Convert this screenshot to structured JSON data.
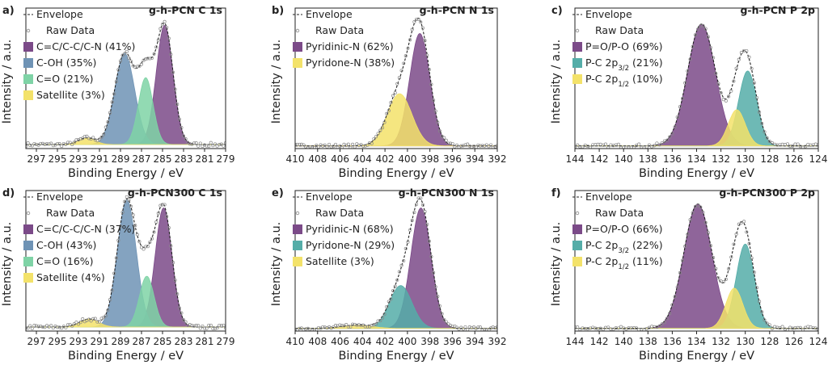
{
  "chart_data": [
    {
      "type": "line",
      "letter": "a)",
      "title": "g-h-PCN C 1s",
      "xlabel": "Binding Energy / eV",
      "ylabel": "Intensity / a.u.",
      "xlim": [
        298,
        279
      ],
      "xticks": [
        297,
        295,
        293,
        291,
        289,
        287,
        285,
        283,
        281,
        279
      ],
      "ylim": [
        0,
        1.05
      ],
      "baseline": 0.03,
      "legend": {
        "envelope": "Envelope",
        "raw": "Raw Data"
      },
      "components": [
        {
          "name": "C=C/C-C/C-N (41%)",
          "color": "#7b4a88",
          "center": 284.8,
          "height": 0.89,
          "sigma": 0.8
        },
        {
          "name": "C-OH (35%)",
          "color": "#6f93b5",
          "center": 288.6,
          "height": 0.68,
          "sigma": 0.95
        },
        {
          "name": "C=O (21%)",
          "color": "#7fd3a6",
          "center": 286.6,
          "height": 0.5,
          "sigma": 0.7
        },
        {
          "name": "Satellite (3%)",
          "color": "#f3e26a",
          "center": 292.2,
          "height": 0.05,
          "sigma": 0.8
        }
      ]
    },
    {
      "type": "line",
      "letter": "b)",
      "title": "g-h-PCN N 1s",
      "xlabel": "Binding Energy / eV",
      "ylabel": "Intensity / a.u.",
      "xlim": [
        410,
        392
      ],
      "xticks": [
        410,
        408,
        406,
        404,
        402,
        400,
        398,
        396,
        394,
        392
      ],
      "ylim": [
        0,
        1.05
      ],
      "baseline": 0.02,
      "legend": {
        "envelope": "Envelope",
        "raw": "Raw Data"
      },
      "components": [
        {
          "name": "Pyridinic-N (62%)",
          "color": "#7b4a88",
          "center": 398.9,
          "height": 0.84,
          "sigma": 0.9
        },
        {
          "name": "Pyridone-N (38%)",
          "color": "#f3e26a",
          "center": 400.7,
          "height": 0.39,
          "sigma": 1.1
        }
      ]
    },
    {
      "type": "line",
      "letter": "c)",
      "title": "g-h-PCN P 2p",
      "xlabel": "Binding Energy / eV",
      "ylabel": "Intensity / a.u.",
      "xlim": [
        144,
        124
      ],
      "xticks": [
        144,
        142,
        140,
        138,
        136,
        134,
        132,
        130,
        128,
        126,
        124
      ],
      "ylim": [
        0,
        1.05
      ],
      "baseline": 0.02,
      "legend": {
        "envelope": "Envelope",
        "raw": "Raw Data"
      },
      "components": [
        {
          "name": "P=O/P-O (69%)",
          "color": "#7b4a88",
          "center": 133.6,
          "height": 0.91,
          "sigma": 1.15
        },
        {
          "name": "P-C 2p",
          "sub": "3/2",
          "suffix": " (21%)",
          "color": "#55ada8",
          "center": 129.8,
          "height": 0.56,
          "sigma": 0.75
        },
        {
          "name": "P-C 2p",
          "sub": "1/2",
          "suffix": " (10%)",
          "color": "#f3e26a",
          "center": 130.7,
          "height": 0.27,
          "sigma": 0.7
        }
      ]
    },
    {
      "type": "line",
      "letter": "d)",
      "title": "g-h-PCN300 C 1s",
      "xlabel": "Binding Energy / eV",
      "ylabel": "Intensity / a.u.",
      "xlim": [
        298,
        279
      ],
      "xticks": [
        297,
        295,
        293,
        291,
        289,
        287,
        285,
        283,
        281,
        279
      ],
      "ylim": [
        0,
        1.05
      ],
      "baseline": 0.03,
      "legend": {
        "envelope": "Envelope",
        "raw": "Raw Data"
      },
      "components": [
        {
          "name": "C=C/C-C/C-N (37%)",
          "color": "#7b4a88",
          "center": 284.9,
          "height": 0.89,
          "sigma": 0.8
        },
        {
          "name": "C-OH (43%)",
          "color": "#6f93b5",
          "center": 288.4,
          "height": 0.95,
          "sigma": 0.9
        },
        {
          "name": "C=O (16%)",
          "color": "#7fd3a6",
          "center": 286.5,
          "height": 0.38,
          "sigma": 0.7
        },
        {
          "name": "Satellite (4%)",
          "color": "#f3e26a",
          "center": 292.0,
          "height": 0.06,
          "sigma": 0.9
        }
      ]
    },
    {
      "type": "line",
      "letter": "e)",
      "title": "g-h-PCN300 N 1s",
      "xlabel": "Binding Energy / eV",
      "ylabel": "Intensity / a.u.",
      "xlim": [
        410,
        392
      ],
      "xticks": [
        410,
        408,
        406,
        404,
        402,
        400,
        398,
        396,
        394,
        392
      ],
      "ylim": [
        0,
        1.05
      ],
      "baseline": 0.02,
      "legend": {
        "envelope": "Envelope",
        "raw": "Raw Data"
      },
      "components": [
        {
          "name": "Pyridinic-N (68%)",
          "color": "#7b4a88",
          "center": 398.8,
          "height": 0.9,
          "sigma": 0.9
        },
        {
          "name": "Pyridone-N (29%)",
          "color": "#55ada8",
          "center": 400.6,
          "height": 0.32,
          "sigma": 1.0
        },
        {
          "name": "Satellite (3%)",
          "color": "#f3e26a",
          "center": 404.5,
          "height": 0.025,
          "sigma": 1.3
        }
      ]
    },
    {
      "type": "line",
      "letter": "f)",
      "title": "g-h-PCN300 P 2p",
      "xlabel": "Binding Energy / eV",
      "ylabel": "Intensity / a.u.",
      "xlim": [
        144,
        124
      ],
      "xticks": [
        144,
        142,
        140,
        138,
        136,
        134,
        132,
        130,
        128,
        126,
        124
      ],
      "ylim": [
        0,
        1.05
      ],
      "baseline": 0.02,
      "legend": {
        "envelope": "Envelope",
        "raw": "Raw Data"
      },
      "components": [
        {
          "name": "P=O/P-O (66%)",
          "color": "#7b4a88",
          "center": 133.9,
          "height": 0.93,
          "sigma": 1.15
        },
        {
          "name": "P-C 2p",
          "sub": "3/2",
          "suffix": " (22%)",
          "color": "#55ada8",
          "center": 130.0,
          "height": 0.63,
          "sigma": 0.75
        },
        {
          "name": "P-C 2p",
          "sub": "1/2",
          "suffix": " (11%)",
          "color": "#f3e26a",
          "center": 130.9,
          "height": 0.3,
          "sigma": 0.7
        }
      ]
    }
  ]
}
